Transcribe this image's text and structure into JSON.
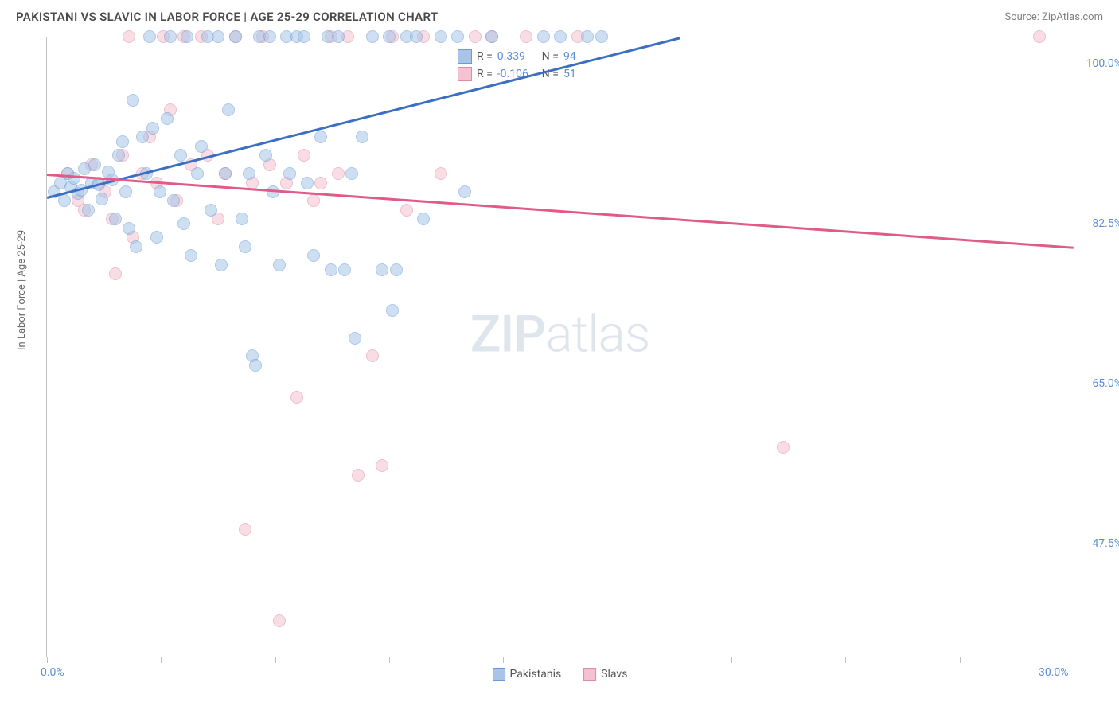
{
  "title": "PAKISTANI VS SLAVIC IN LABOR FORCE | AGE 25-29 CORRELATION CHART",
  "source": "Source: ZipAtlas.com",
  "ylabel": "In Labor Force | Age 25-29",
  "watermark_a": "ZIP",
  "watermark_b": "atlas",
  "chart": {
    "type": "scatter",
    "background_color": "#ffffff",
    "grid_color": "#d8d8d8",
    "axis_color": "#c0c0c0",
    "tick_label_color": "#5b8dd6",
    "xlim": [
      0,
      30
    ],
    "ylim": [
      35,
      103
    ],
    "xticks": [
      0,
      3.33,
      6.67,
      10,
      13.33,
      16.67,
      20,
      23.33,
      26.67,
      30
    ],
    "xtick_labels": {
      "0": "0.0%",
      "30": "30.0%"
    },
    "yticks": [
      47.5,
      65.0,
      82.5,
      100.0
    ],
    "ytick_labels": [
      "47.5%",
      "65.0%",
      "82.5%",
      "100.0%"
    ],
    "marker_size": 16,
    "marker_opacity": 0.55
  },
  "series": {
    "pakistanis": {
      "label": "Pakistanis",
      "color_fill": "#a8c5e8",
      "color_stroke": "#6a9bd1",
      "trend_color": "#3a6fc4",
      "R": "0.339",
      "N": "94",
      "trend": {
        "x1": 0,
        "y1": 85.5,
        "x2": 18.5,
        "y2": 103
      },
      "points": [
        [
          0.2,
          86
        ],
        [
          0.4,
          87
        ],
        [
          0.5,
          85
        ],
        [
          0.6,
          88
        ],
        [
          0.7,
          86.5
        ],
        [
          0.8,
          87.5
        ],
        [
          0.9,
          85.8
        ],
        [
          1.0,
          86.2
        ],
        [
          1.1,
          88.5
        ],
        [
          1.2,
          84
        ],
        [
          1.3,
          87
        ],
        [
          1.4,
          89
        ],
        [
          1.5,
          86.8
        ],
        [
          1.6,
          85.2
        ],
        [
          1.8,
          88.2
        ],
        [
          1.9,
          87.3
        ],
        [
          2.0,
          83
        ],
        [
          2.1,
          90
        ],
        [
          2.2,
          91.5
        ],
        [
          2.3,
          86
        ],
        [
          2.4,
          82
        ],
        [
          2.5,
          96
        ],
        [
          2.6,
          80
        ],
        [
          2.8,
          92
        ],
        [
          2.9,
          88
        ],
        [
          3.0,
          103
        ],
        [
          3.1,
          93
        ],
        [
          3.2,
          81
        ],
        [
          3.3,
          86
        ],
        [
          3.5,
          94
        ],
        [
          3.6,
          103
        ],
        [
          3.7,
          85
        ],
        [
          3.9,
          90
        ],
        [
          4.0,
          82.5
        ],
        [
          4.1,
          103
        ],
        [
          4.2,
          79
        ],
        [
          4.4,
          88
        ],
        [
          4.5,
          91
        ],
        [
          4.7,
          103
        ],
        [
          4.8,
          84
        ],
        [
          5.0,
          103
        ],
        [
          5.1,
          78
        ],
        [
          5.2,
          88
        ],
        [
          5.3,
          95
        ],
        [
          5.5,
          103
        ],
        [
          5.7,
          83
        ],
        [
          5.8,
          80
        ],
        [
          5.9,
          88
        ],
        [
          6.0,
          68
        ],
        [
          6.1,
          67
        ],
        [
          6.2,
          103
        ],
        [
          6.4,
          90
        ],
        [
          6.5,
          103
        ],
        [
          6.6,
          86
        ],
        [
          6.8,
          78
        ],
        [
          7.0,
          103
        ],
        [
          7.1,
          88
        ],
        [
          7.3,
          103
        ],
        [
          7.5,
          103
        ],
        [
          7.6,
          87
        ],
        [
          7.8,
          79
        ],
        [
          8.0,
          92
        ],
        [
          8.2,
          103
        ],
        [
          8.3,
          77.5
        ],
        [
          8.5,
          103
        ],
        [
          8.7,
          77.5
        ],
        [
          8.9,
          88
        ],
        [
          9.0,
          70
        ],
        [
          9.2,
          92
        ],
        [
          9.5,
          103
        ],
        [
          9.8,
          77.5
        ],
        [
          10.0,
          103
        ],
        [
          10.1,
          73
        ],
        [
          10.2,
          77.5
        ],
        [
          10.5,
          103
        ],
        [
          10.8,
          103
        ],
        [
          11.0,
          83
        ],
        [
          11.5,
          103
        ],
        [
          12.0,
          103
        ],
        [
          12.2,
          86
        ],
        [
          13.0,
          103
        ],
        [
          14.5,
          103
        ],
        [
          15.0,
          103
        ],
        [
          15.8,
          103
        ],
        [
          16.2,
          103
        ]
      ]
    },
    "slavs": {
      "label": "Slavs",
      "color_fill": "#f4c2d0",
      "color_stroke": "#e08aa5",
      "trend_color": "#e05a8a",
      "R": "-0.106",
      "N": "51",
      "trend": {
        "x1": 0,
        "y1": 88,
        "x2": 30,
        "y2": 80
      },
      "points": [
        [
          0.6,
          88
        ],
        [
          0.9,
          85
        ],
        [
          1.1,
          84
        ],
        [
          1.3,
          89
        ],
        [
          1.5,
          87
        ],
        [
          1.7,
          86
        ],
        [
          1.9,
          83
        ],
        [
          2.0,
          77
        ],
        [
          2.2,
          90
        ],
        [
          2.4,
          103
        ],
        [
          2.5,
          81
        ],
        [
          2.8,
          88
        ],
        [
          3.0,
          92
        ],
        [
          3.2,
          87
        ],
        [
          3.4,
          103
        ],
        [
          3.6,
          95
        ],
        [
          3.8,
          85
        ],
        [
          4.0,
          103
        ],
        [
          4.2,
          89
        ],
        [
          4.5,
          103
        ],
        [
          4.7,
          90
        ],
        [
          5.0,
          83
        ],
        [
          5.2,
          88
        ],
        [
          5.5,
          103
        ],
        [
          5.8,
          49
        ],
        [
          6.0,
          87
        ],
        [
          6.3,
          103
        ],
        [
          6.5,
          89
        ],
        [
          6.8,
          39
        ],
        [
          7.0,
          87
        ],
        [
          7.3,
          63.5
        ],
        [
          7.5,
          90
        ],
        [
          7.8,
          85
        ],
        [
          8.0,
          87
        ],
        [
          8.3,
          103
        ],
        [
          8.5,
          88
        ],
        [
          8.8,
          103
        ],
        [
          9.1,
          55
        ],
        [
          9.5,
          68
        ],
        [
          9.8,
          56
        ],
        [
          10.1,
          103
        ],
        [
          10.5,
          84
        ],
        [
          11.0,
          103
        ],
        [
          11.5,
          88
        ],
        [
          12.5,
          103
        ],
        [
          13.0,
          103
        ],
        [
          14.0,
          103
        ],
        [
          15.5,
          103
        ],
        [
          21.5,
          58
        ],
        [
          29.0,
          103
        ]
      ]
    }
  },
  "stat_box": {
    "r_label": "R =",
    "n_label": "N ="
  },
  "legend_order": [
    "pakistanis",
    "slavs"
  ]
}
